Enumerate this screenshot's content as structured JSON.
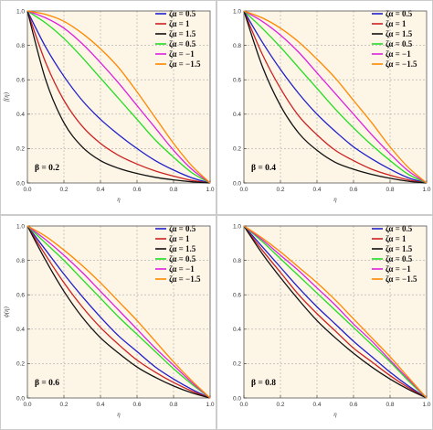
{
  "chart_data": [
    {
      "type": "line",
      "annotation": "β = 0.2",
      "xlabel": "η",
      "ylabel": "f(η)",
      "xlim": [
        0,
        1
      ],
      "ylim": [
        0,
        1
      ],
      "xticks": [
        "0.0",
        "0.2",
        "0.4",
        "0.6",
        "0.8",
        "1.0"
      ],
      "yticks": [
        "0.0",
        "0.2",
        "0.4",
        "0.6",
        "0.8",
        "1.0"
      ],
      "grid": "dashed",
      "legend_position": "top-right",
      "x": [
        0,
        0.1,
        0.2,
        0.3,
        0.4,
        0.5,
        0.6,
        0.7,
        0.8,
        0.9,
        1.0
      ],
      "series": [
        {
          "name": "ζα = 0.5",
          "color": "#1f1fcc",
          "values": [
            1.0,
            0.79,
            0.62,
            0.48,
            0.37,
            0.28,
            0.2,
            0.13,
            0.075,
            0.03,
            0.0
          ]
        },
        {
          "name": "ζα = 1",
          "color": "#cc2222",
          "values": [
            1.0,
            0.7,
            0.48,
            0.33,
            0.23,
            0.16,
            0.11,
            0.07,
            0.04,
            0.015,
            0.0
          ]
        },
        {
          "name": "ζα = 1.5",
          "color": "#111111",
          "values": [
            1.0,
            0.6,
            0.35,
            0.21,
            0.13,
            0.085,
            0.055,
            0.033,
            0.018,
            0.007,
            0.0
          ]
        },
        {
          "name": "ζα = 0.5",
          "color": "#22dd22",
          "values": [
            1.0,
            0.93,
            0.84,
            0.73,
            0.61,
            0.49,
            0.37,
            0.25,
            0.15,
            0.06,
            0.0
          ]
        },
        {
          "name": "ζα = −1",
          "color": "#dd22dd",
          "values": [
            1.0,
            0.96,
            0.9,
            0.81,
            0.7,
            0.58,
            0.45,
            0.32,
            0.19,
            0.08,
            0.0
          ]
        },
        {
          "name": "ζα = −1.5",
          "color": "#ff8800",
          "values": [
            1.0,
            0.98,
            0.94,
            0.87,
            0.78,
            0.67,
            0.53,
            0.38,
            0.23,
            0.1,
            0.0
          ]
        }
      ]
    },
    {
      "type": "line",
      "annotation": "β = 0.4",
      "xlabel": "η",
      "ylabel": "",
      "xlim": [
        0,
        1
      ],
      "ylim": [
        0,
        1
      ],
      "xticks": [
        "0.0",
        "0.2",
        "0.4",
        "0.6",
        "0.8",
        "1.0"
      ],
      "yticks": [
        "0.0",
        "0.2",
        "0.4",
        "0.6",
        "0.8",
        "1.0"
      ],
      "grid": "dashed",
      "legend_position": "top-right",
      "x": [
        0,
        0.1,
        0.2,
        0.3,
        0.4,
        0.5,
        0.6,
        0.7,
        0.8,
        0.9,
        1.0
      ],
      "series": [
        {
          "name": "ζα = 0.5",
          "color": "#1f1fcc",
          "values": [
            1.0,
            0.82,
            0.66,
            0.52,
            0.4,
            0.3,
            0.21,
            0.14,
            0.08,
            0.03,
            0.0
          ]
        },
        {
          "name": "ζα = 1",
          "color": "#cc2222",
          "values": [
            1.0,
            0.75,
            0.55,
            0.39,
            0.28,
            0.19,
            0.13,
            0.08,
            0.045,
            0.018,
            0.0
          ]
        },
        {
          "name": "ζα = 1.5",
          "color": "#111111",
          "values": [
            1.0,
            0.68,
            0.45,
            0.29,
            0.19,
            0.12,
            0.08,
            0.05,
            0.027,
            0.01,
            0.0
          ]
        },
        {
          "name": "ζα = 0.5",
          "color": "#22dd22",
          "values": [
            1.0,
            0.9,
            0.79,
            0.67,
            0.55,
            0.43,
            0.32,
            0.22,
            0.13,
            0.05,
            0.0
          ]
        },
        {
          "name": "ζα = −1",
          "color": "#dd22dd",
          "values": [
            1.0,
            0.94,
            0.86,
            0.76,
            0.64,
            0.52,
            0.4,
            0.28,
            0.17,
            0.07,
            0.0
          ]
        },
        {
          "name": "ζα = −1.5",
          "color": "#ff8800",
          "values": [
            1.0,
            0.96,
            0.9,
            0.82,
            0.72,
            0.61,
            0.48,
            0.35,
            0.21,
            0.09,
            0.0
          ]
        }
      ]
    },
    {
      "type": "line",
      "annotation": "β = 0.6",
      "xlabel": "η",
      "ylabel": "ϕ(η)",
      "xlim": [
        0,
        1
      ],
      "ylim": [
        0,
        1
      ],
      "xticks": [
        "0.0",
        "0.2",
        "0.4",
        "0.6",
        "0.8",
        "1.0"
      ],
      "yticks": [
        "0.0",
        "0.2",
        "0.4",
        "0.6",
        "0.8",
        "1.0"
      ],
      "grid": "dashed",
      "legend_position": "top-right",
      "x": [
        0,
        0.1,
        0.2,
        0.3,
        0.4,
        0.5,
        0.6,
        0.7,
        0.8,
        0.9,
        1.0
      ],
      "series": [
        {
          "name": "ζα = 0.5",
          "color": "#1f1fcc",
          "values": [
            1.0,
            0.86,
            0.72,
            0.59,
            0.47,
            0.36,
            0.27,
            0.18,
            0.11,
            0.05,
            0.0
          ]
        },
        {
          "name": "ζα = 1",
          "color": "#cc2222",
          "values": [
            1.0,
            0.83,
            0.67,
            0.53,
            0.41,
            0.31,
            0.22,
            0.15,
            0.09,
            0.04,
            0.0
          ]
        },
        {
          "name": "ζα = 1.5",
          "color": "#111111",
          "values": [
            1.0,
            0.8,
            0.62,
            0.47,
            0.35,
            0.26,
            0.18,
            0.12,
            0.07,
            0.03,
            0.0
          ]
        },
        {
          "name": "ζα = 0.5",
          "color": "#22dd22",
          "values": [
            1.0,
            0.9,
            0.8,
            0.69,
            0.58,
            0.47,
            0.37,
            0.27,
            0.17,
            0.08,
            0.0
          ]
        },
        {
          "name": "ζα = −1",
          "color": "#dd22dd",
          "values": [
            1.0,
            0.92,
            0.83,
            0.73,
            0.62,
            0.51,
            0.4,
            0.29,
            0.19,
            0.09,
            0.0
          ]
        },
        {
          "name": "ζα = −1.5",
          "color": "#ff8800",
          "values": [
            1.0,
            0.94,
            0.86,
            0.77,
            0.67,
            0.56,
            0.45,
            0.33,
            0.21,
            0.1,
            0.0
          ]
        }
      ]
    },
    {
      "type": "line",
      "annotation": "β = 0.8",
      "xlabel": "η",
      "ylabel": "",
      "xlim": [
        0,
        1
      ],
      "ylim": [
        0,
        1
      ],
      "xticks": [
        "0.0",
        "0.2",
        "0.4",
        "0.6",
        "0.8",
        "1.0"
      ],
      "yticks": [
        "0.0",
        "0.2",
        "0.4",
        "0.6",
        "0.8",
        "1.0"
      ],
      "grid": "dashed",
      "legend_position": "top-right",
      "x": [
        0,
        0.1,
        0.2,
        0.3,
        0.4,
        0.5,
        0.6,
        0.7,
        0.8,
        0.9,
        1.0
      ],
      "series": [
        {
          "name": "ζα = 0.5",
          "color": "#1f1fcc",
          "values": [
            1.0,
            0.88,
            0.76,
            0.64,
            0.53,
            0.43,
            0.33,
            0.24,
            0.15,
            0.07,
            0.0
          ]
        },
        {
          "name": "ζα = 1",
          "color": "#cc2222",
          "values": [
            1.0,
            0.86,
            0.73,
            0.6,
            0.49,
            0.39,
            0.29,
            0.21,
            0.13,
            0.06,
            0.0
          ]
        },
        {
          "name": "ζα = 1.5",
          "color": "#111111",
          "values": [
            1.0,
            0.84,
            0.7,
            0.57,
            0.45,
            0.35,
            0.26,
            0.18,
            0.11,
            0.05,
            0.0
          ]
        },
        {
          "name": "ζα = 0.5",
          "color": "#22dd22",
          "values": [
            1.0,
            0.91,
            0.81,
            0.71,
            0.61,
            0.51,
            0.41,
            0.31,
            0.21,
            0.1,
            0.0
          ]
        },
        {
          "name": "ζα = −1",
          "color": "#dd22dd",
          "values": [
            1.0,
            0.92,
            0.83,
            0.74,
            0.64,
            0.54,
            0.43,
            0.33,
            0.22,
            0.11,
            0.0
          ]
        },
        {
          "name": "ζα = −1.5",
          "color": "#ff8800",
          "values": [
            1.0,
            0.93,
            0.85,
            0.76,
            0.67,
            0.57,
            0.46,
            0.35,
            0.24,
            0.12,
            0.0
          ]
        }
      ]
    }
  ],
  "style": {
    "background": "#fdf5e6",
    "grid_color": "#aaaaaa",
    "frame_color": "#555555"
  }
}
